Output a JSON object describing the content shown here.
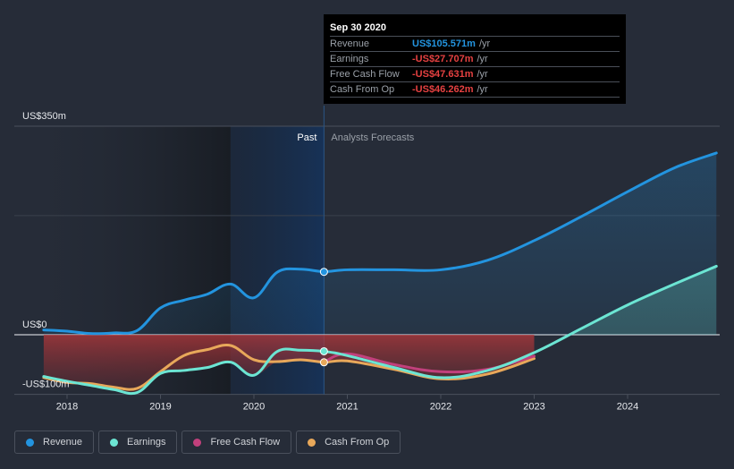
{
  "tooltip": {
    "date": "Sep 30 2020",
    "rows": [
      {
        "label": "Revenue",
        "value": "US$105.571m",
        "unit": "/yr",
        "color": "#2394df"
      },
      {
        "label": "Earnings",
        "value": "-US$27.707m",
        "unit": "/yr",
        "color": "#e64141"
      },
      {
        "label": "Free Cash Flow",
        "value": "-US$47.631m",
        "unit": "/yr",
        "color": "#e64141"
      },
      {
        "label": "Cash From Op",
        "value": "-US$46.262m",
        "unit": "/yr",
        "color": "#e64141"
      }
    ]
  },
  "legend": [
    {
      "label": "Revenue",
      "color": "#2394df"
    },
    {
      "label": "Earnings",
      "color": "#6ce5d3"
    },
    {
      "label": "Free Cash Flow",
      "color": "#c1407c"
    },
    {
      "label": "Cash From Op",
      "color": "#e8a85a"
    }
  ],
  "chart_data": {
    "type": "line",
    "title": "",
    "xlabel": "",
    "ylabel": "",
    "y_tick_labels": [
      "US$350m",
      "US$0",
      "-US$100m"
    ],
    "y_ticks": [
      350,
      0,
      -100
    ],
    "ylim": [
      -100,
      350
    ],
    "xlim": [
      2017.75,
      2024.95
    ],
    "x_tick_labels": [
      "2018",
      "2019",
      "2020",
      "2021",
      "2022",
      "2023",
      "2024"
    ],
    "x_ticks": [
      2018,
      2019,
      2020,
      2021,
      2022,
      2023,
      2024
    ],
    "past_label": "Past",
    "forecast_label": "Analysts Forecasts",
    "past_end": 2020.75,
    "highlight_start": 2019.75,
    "grid": true,
    "legend_position": "bottom-left",
    "series": [
      {
        "name": "Revenue",
        "color": "#2394df",
        "x": [
          2017.75,
          2018.0,
          2018.25,
          2018.5,
          2018.75,
          2019.0,
          2019.25,
          2019.5,
          2019.75,
          2020.0,
          2020.25,
          2020.5,
          2020.75,
          2021.0,
          2021.5,
          2022.0,
          2022.5,
          2023.0,
          2023.5,
          2024.0,
          2024.5,
          2024.95
        ],
        "y": [
          8,
          6,
          2,
          3,
          7,
          45,
          58,
          68,
          85,
          62,
          105,
          110,
          106,
          109,
          109,
          109,
          125,
          158,
          198,
          240,
          280,
          305
        ]
      },
      {
        "name": "Earnings",
        "color": "#6ce5d3",
        "x": [
          2017.75,
          2018.0,
          2018.25,
          2018.5,
          2018.75,
          2019.0,
          2019.25,
          2019.5,
          2019.75,
          2020.0,
          2020.25,
          2020.5,
          2020.75,
          2021.0,
          2021.5,
          2022.0,
          2022.5,
          2023.0,
          2023.5,
          2024.0,
          2024.5,
          2024.95
        ],
        "y": [
          -70,
          -78,
          -85,
          -92,
          -97,
          -65,
          -60,
          -55,
          -46,
          -68,
          -28,
          -26,
          -28,
          -35,
          -55,
          -72,
          -60,
          -30,
          10,
          50,
          85,
          115
        ]
      },
      {
        "name": "Free Cash Flow",
        "color": "#c1407c",
        "x": [
          2020.75,
          2021.0,
          2021.5,
          2022.0,
          2022.5,
          2023.0
        ],
        "y": [
          -46,
          -32,
          -50,
          -62,
          -58,
          -36
        ]
      },
      {
        "name": "Cash From Op",
        "color": "#e8a85a",
        "x": [
          2017.75,
          2018.0,
          2018.25,
          2018.5,
          2018.75,
          2019.0,
          2019.25,
          2019.5,
          2019.75,
          2020.0,
          2020.25,
          2020.5,
          2020.75,
          2021.0,
          2021.5,
          2022.0,
          2022.5,
          2023.0
        ],
        "y": [
          -72,
          -80,
          -82,
          -88,
          -90,
          -62,
          -35,
          -25,
          -18,
          -42,
          -45,
          -42,
          -46,
          -44,
          -58,
          -74,
          -66,
          -40
        ]
      }
    ],
    "highlight_point": {
      "x": 2020.75,
      "label": "Sep 30 2020",
      "revenue": 105.571,
      "earnings": -27.707,
      "free_cash_flow": -47.631,
      "cash_from_op": -46.262
    }
  }
}
